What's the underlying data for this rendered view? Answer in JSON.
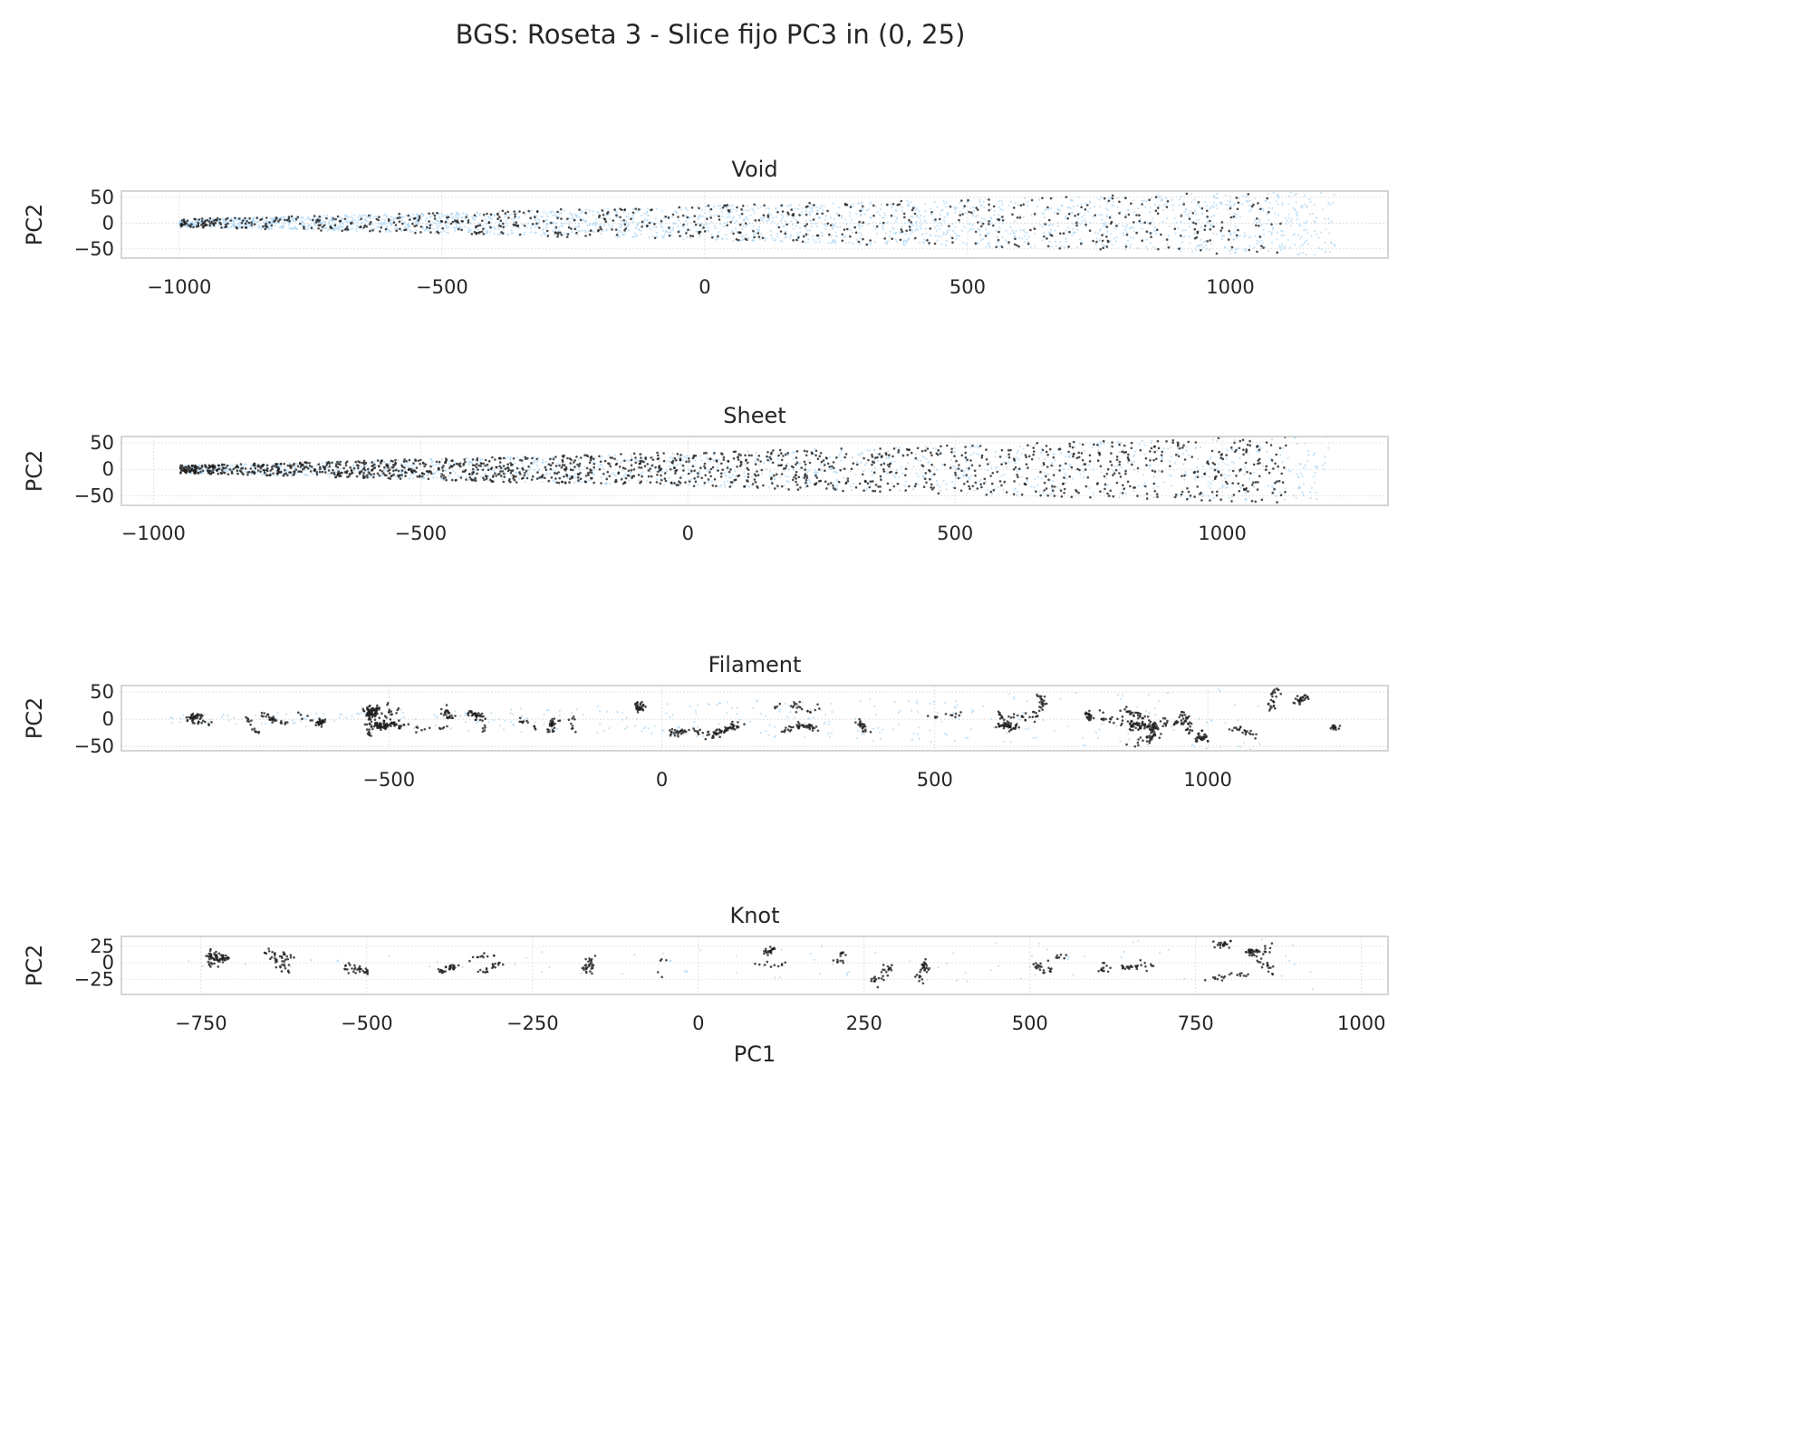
{
  "figure": {
    "suptitle": "BGS: Roseta 3 - Slice fijo PC3 in (0, 25)"
  },
  "colors": {
    "background_points": "#a8d4f5",
    "class_points": "#1f1f1f",
    "frame": "#cccccc",
    "grid": "#d9d9d9",
    "text": "#262626"
  },
  "chart_data": [
    {
      "type": "scatter",
      "title": "Void",
      "xlabel": "",
      "ylabel": "PC2",
      "xlim": [
        -1110,
        1300
      ],
      "ylim": [
        -68,
        62
      ],
      "xticks": [
        -1000,
        -500,
        0,
        500,
        1000
      ],
      "xtick_labels": [
        "−1000",
        "−500",
        "0",
        "500",
        "1000"
      ],
      "yticks": [
        -50,
        0,
        50
      ],
      "ytick_labels": [
        "−50",
        "0",
        "50"
      ],
      "grid": true,
      "series": [
        {
          "role": "background",
          "x_range": [
            -1000,
            1200
          ],
          "density": "high",
          "spread_growth": "widens with PC1",
          "approx_count": 2200
        },
        {
          "role": "highlight",
          "x_range": [
            -1000,
            1100
          ],
          "density": "medium",
          "approx_count": 700
        }
      ]
    },
    {
      "type": "scatter",
      "title": "Sheet",
      "xlabel": "",
      "ylabel": "PC2",
      "xlim": [
        -1060,
        1310
      ],
      "ylim": [
        -68,
        62
      ],
      "xticks": [
        -1000,
        -500,
        0,
        500,
        1000
      ],
      "xtick_labels": [
        "−1000",
        "−500",
        "0",
        "500",
        "1000"
      ],
      "yticks": [
        -50,
        0,
        50
      ],
      "ytick_labels": [
        "−50",
        "0",
        "50"
      ],
      "grid": true,
      "series": [
        {
          "role": "background",
          "x_range": [
            -950,
            1200
          ],
          "density": "medium",
          "approx_count": 1300
        },
        {
          "role": "highlight",
          "x_range": [
            -950,
            1120
          ],
          "density": "high",
          "approx_count": 1500
        }
      ]
    },
    {
      "type": "scatter",
      "title": "Filament",
      "xlabel": "",
      "ylabel": "PC2",
      "xlim": [
        -990,
        1330
      ],
      "ylim": [
        -58,
        62
      ],
      "xticks": [
        -500,
        0,
        500,
        1000
      ],
      "xtick_labels": [
        "−500",
        "0",
        "500",
        "1000"
      ],
      "yticks": [
        -50,
        0,
        50
      ],
      "ytick_labels": [
        "−50",
        "0",
        "50"
      ],
      "grid": true,
      "series": [
        {
          "role": "background",
          "x_range": [
            -900,
            1100
          ],
          "density": "low",
          "approx_count": 350
        },
        {
          "role": "highlight",
          "x_range": [
            -880,
            1240
          ],
          "density": "clustered",
          "approx_count": 1100
        }
      ]
    },
    {
      "type": "scatter",
      "title": "Knot",
      "xlabel": "PC1",
      "ylabel": "PC2",
      "xlim": [
        -870,
        1040
      ],
      "ylim": [
        -48,
        40
      ],
      "xticks": [
        -750,
        -500,
        -250,
        0,
        250,
        500,
        750,
        1000
      ],
      "xtick_labels": [
        "−750",
        "−500",
        "−250",
        "0",
        "250",
        "500",
        "750",
        "1000"
      ],
      "yticks": [
        -25,
        0,
        25
      ],
      "ytick_labels": [
        "−25",
        "0",
        "25"
      ],
      "grid": true,
      "series": [
        {
          "role": "background",
          "x_range": [
            -800,
            950
          ],
          "density": "very low",
          "approx_count": 80
        },
        {
          "role": "highlight",
          "x_range": [
            -780,
            950
          ],
          "density": "clustered",
          "approx_count": 500
        }
      ]
    }
  ]
}
